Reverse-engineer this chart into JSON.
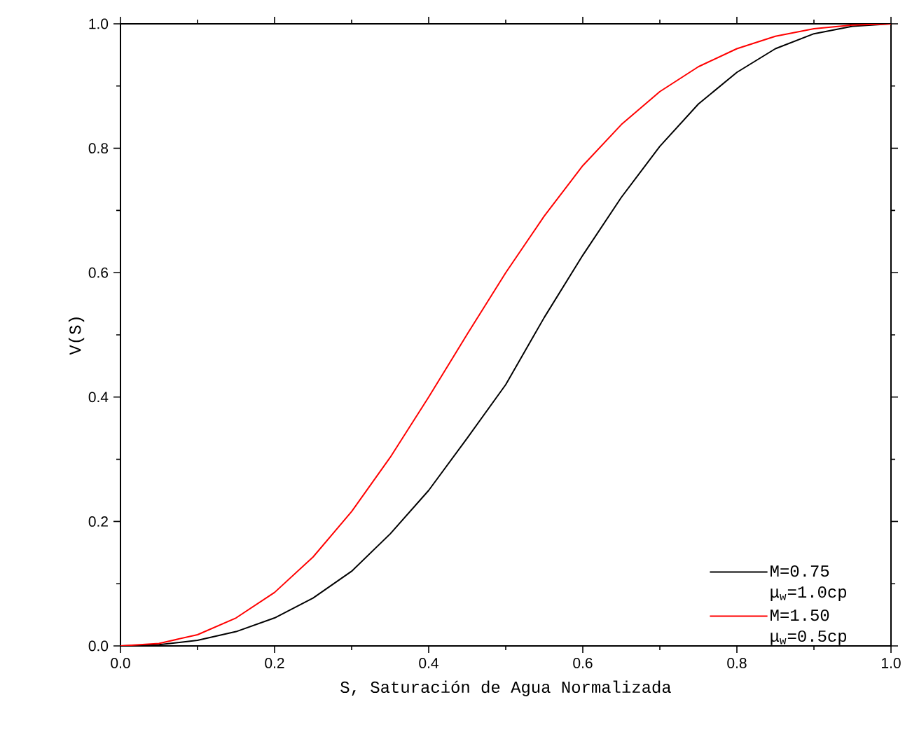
{
  "chart_data": {
    "type": "line",
    "xlabel": "S, Saturación de Agua Normalizada",
    "ylabel": "V(S)",
    "x": [
      0,
      0.05,
      0.1,
      0.15,
      0.2,
      0.25,
      0.3,
      0.35,
      0.4,
      0.45,
      0.5,
      0.55,
      0.6,
      0.65,
      0.7,
      0.75,
      0.8,
      0.85,
      0.9,
      0.95,
      1
    ],
    "series": [
      {
        "name": "M=0.75 μ$_{w}$=1.0cp",
        "color": "#000000",
        "values": [
          0,
          0.002,
          0.009,
          0.023,
          0.045,
          0.077,
          0.12,
          0.18,
          0.25,
          0.334,
          0.42,
          0.528,
          0.628,
          0.721,
          0.803,
          0.871,
          0.922,
          0.96,
          0.984,
          0.996,
          1
        ]
      },
      {
        "name": "M=1.50 μ$_{w}$=0.5cp",
        "color": "#ff0000",
        "values": [
          0,
          0.004,
          0.018,
          0.045,
          0.086,
          0.143,
          0.216,
          0.303,
          0.4,
          0.501,
          0.6,
          0.691,
          0.772,
          0.838,
          0.891,
          0.931,
          0.96,
          0.98,
          0.992,
          0.998,
          1
        ]
      }
    ],
    "xlim": [
      0,
      1
    ],
    "ylim": [
      0,
      1
    ],
    "xticks": [
      {
        "value": 0,
        "label": "0.0"
      },
      0.2,
      0.4,
      0.6,
      0.8,
      {
        "value": 1,
        "label": "1.0"
      }
    ],
    "yticks": [
      {
        "value": 0,
        "label": "0.0"
      },
      0.2,
      0.4,
      0.6,
      0.8,
      {
        "value": 1,
        "label": "1.0"
      }
    ],
    "legend": "bottom right",
    "grid": false,
    "marker": "none",
    "line_style": "solid"
  }
}
